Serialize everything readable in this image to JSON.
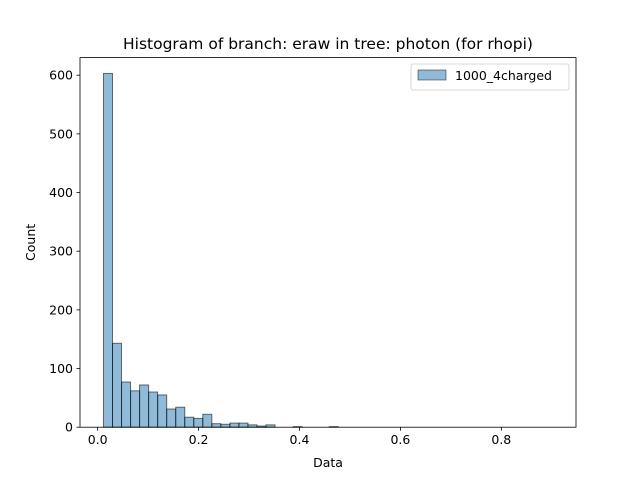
{
  "chart_data": {
    "type": "bar",
    "title": "Histogram of branch: eraw in tree: photon (for rhopi)",
    "xlabel": "Data",
    "ylabel": "Count",
    "xlim": [
      -0.035,
      0.948
    ],
    "ylim": [
      0,
      630
    ],
    "xticks": [
      0.0,
      0.2,
      0.4,
      0.6,
      0.8
    ],
    "xtick_labels": [
      "0.0",
      "0.2",
      "0.4",
      "0.6",
      "0.8"
    ],
    "yticks": [
      0,
      100,
      200,
      300,
      400,
      500,
      600
    ],
    "ytick_labels": [
      "0",
      "100",
      "200",
      "300",
      "400",
      "500",
      "600"
    ],
    "bin_start": 0.0115,
    "bin_width": 0.0179,
    "series": [
      {
        "name": "1000_4charged",
        "color": "#1f77b4",
        "alpha": 0.5,
        "edgecolor": "#000000",
        "values": [
          603,
          143,
          77,
          62,
          72,
          60,
          55,
          31,
          34,
          17,
          15,
          22,
          6,
          5,
          7,
          7,
          4,
          2,
          4,
          0,
          0,
          1,
          0,
          0,
          0,
          1,
          0,
          0,
          0,
          0,
          0,
          0,
          0,
          0,
          0,
          0,
          0,
          0,
          0,
          0,
          0,
          0,
          0,
          0,
          0,
          0,
          0,
          0,
          0,
          0
        ]
      }
    ],
    "legend_position": "upper right",
    "grid": false
  }
}
